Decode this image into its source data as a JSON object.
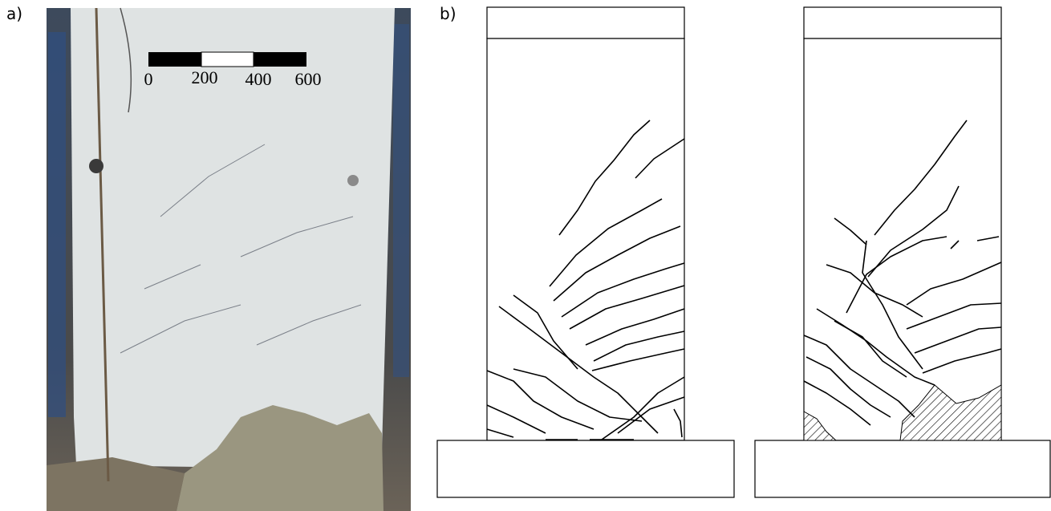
{
  "panels": [
    {
      "label": "a)",
      "scale_labels": [
        0,
        200,
        400,
        600
      ]
    },
    {
      "label": "b)"
    }
  ]
}
